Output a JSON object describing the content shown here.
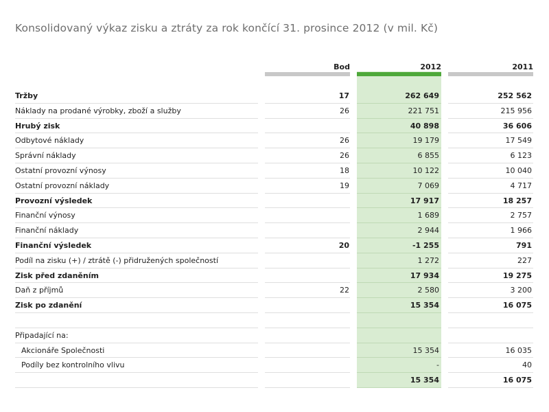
{
  "title": "Konsolidovaný výkaz zisku a ztráty za rok končící 31. prosince 2012 (v mil. Kč)",
  "headers": {
    "note": "Bod",
    "y2012": "2012",
    "y2011": "2011"
  },
  "rows": [
    {
      "label": "Tržby",
      "note": "17",
      "v2012": "262 649",
      "v2011": "252 562",
      "bold": true
    },
    {
      "label": "Náklady na prodané výrobky, zboží a služby",
      "note": "26",
      "v2012": "221 751",
      "v2011": "215 956"
    },
    {
      "label": "Hrubý zisk",
      "note": "",
      "v2012": "40 898",
      "v2011": "36 606",
      "bold": true
    },
    {
      "label": "Odbytové náklady",
      "note": "26",
      "v2012": "19 179",
      "v2011": "17 549"
    },
    {
      "label": "Správní náklady",
      "note": "26",
      "v2012": "6 855",
      "v2011": "6 123"
    },
    {
      "label": "Ostatní provozní výnosy",
      "note": "18",
      "v2012": "10 122",
      "v2011": "10 040"
    },
    {
      "label": "Ostatní provozní náklady",
      "note": "19",
      "v2012": "7 069",
      "v2011": "4 717"
    },
    {
      "label": "Provozní výsledek",
      "note": "",
      "v2012": "17 917",
      "v2011": "18 257",
      "bold": true
    },
    {
      "label": "Finanční výnosy",
      "note": "",
      "v2012": "1 689",
      "v2011": "2 757"
    },
    {
      "label": "Finanční náklady",
      "note": "",
      "v2012": "2 944",
      "v2011": "1 966"
    },
    {
      "label": "Finanční výsledek",
      "note": "20",
      "v2012": "-1 255",
      "v2011": "791",
      "bold": true
    },
    {
      "label": "Podíl na zisku (+) / ztrátě (-) přidružených společností",
      "note": "",
      "v2012": "1 272",
      "v2011": "227"
    },
    {
      "label": "Zisk před zdaněním",
      "note": "",
      "v2012": "17 934",
      "v2011": "19 275",
      "bold": true
    },
    {
      "label": "Daň z příjmů",
      "note": "22",
      "v2012": "2 580",
      "v2011": "3 200"
    },
    {
      "label": "Zisk po zdanění",
      "note": "",
      "v2012": "15 354",
      "v2011": "16 075",
      "bold": true
    },
    {
      "label": "",
      "note": "",
      "v2012": "",
      "v2011": ""
    },
    {
      "label": "Připadající na:",
      "note": "",
      "v2012": "",
      "v2011": ""
    },
    {
      "label": "Akcionáře Společnosti",
      "note": "",
      "v2012": "15 354",
      "v2011": "16 035",
      "indent": true
    },
    {
      "label": "Podíly bez kontrolního vlivu",
      "note": "",
      "v2012": "-",
      "v2011": "40",
      "indent": true
    },
    {
      "label": "",
      "note": "",
      "v2012": "15 354",
      "v2011": "16 075",
      "bold": true
    }
  ]
}
